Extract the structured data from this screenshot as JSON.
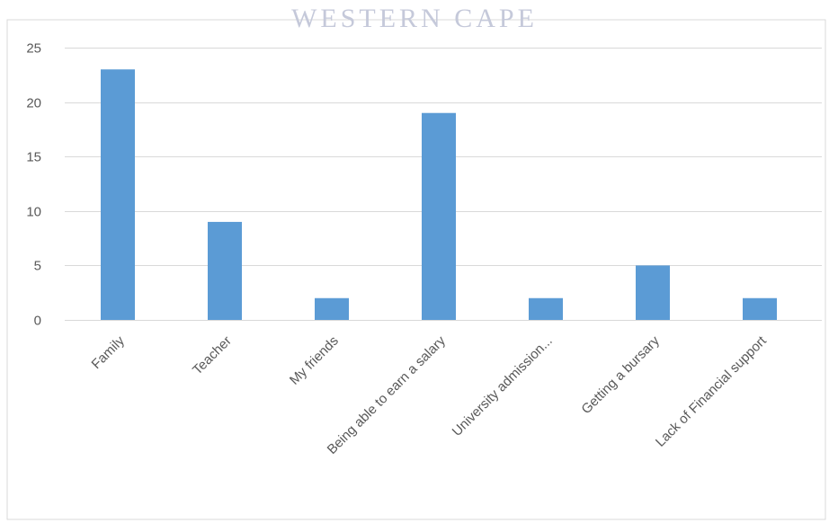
{
  "watermark": "WESTERN CAPE",
  "colors": {
    "bar": "#5b9bd5",
    "grid": "#d9d9d9",
    "frame": "#d9d9d9",
    "text": "#595959"
  },
  "chart_data": {
    "type": "bar",
    "title": "",
    "xlabel": "",
    "ylabel": "",
    "categories": [
      "Family",
      "Teacher",
      "My friends",
      "Being able to earn a salary",
      "University admission...",
      "Getting a bursary",
      "Lack of Financial support"
    ],
    "values": [
      23,
      9,
      2,
      19,
      2,
      5,
      2
    ],
    "ylim": [
      0,
      25
    ],
    "yticks": [
      0,
      5,
      10,
      15,
      20,
      25
    ],
    "grid": true,
    "legend": "none"
  }
}
